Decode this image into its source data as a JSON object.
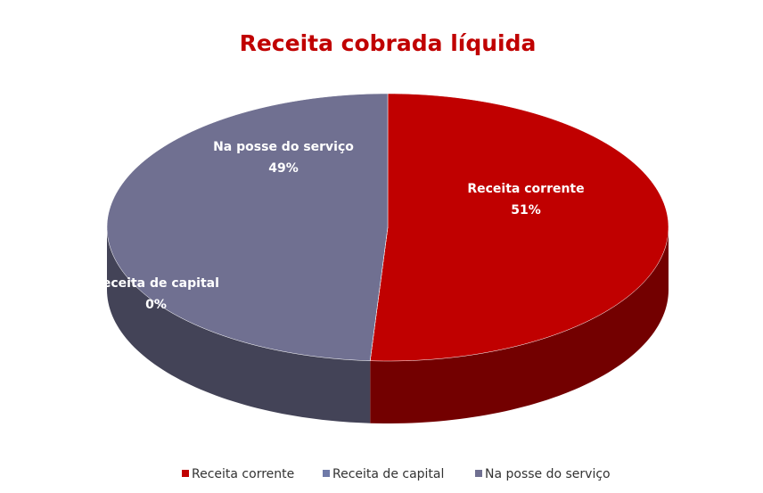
{
  "chart_data": {
    "type": "pie",
    "title": "Receita cobrada líquida",
    "categories": [
      "Receita corrente",
      "Receita de capital",
      "Na posse do serviço"
    ],
    "values": [
      51,
      0,
      49
    ],
    "value_labels": [
      "51%",
      "0%",
      "49%"
    ],
    "colors": [
      "#c00000",
      "#6f7aa8",
      "#707091"
    ],
    "legend": "bottom"
  }
}
